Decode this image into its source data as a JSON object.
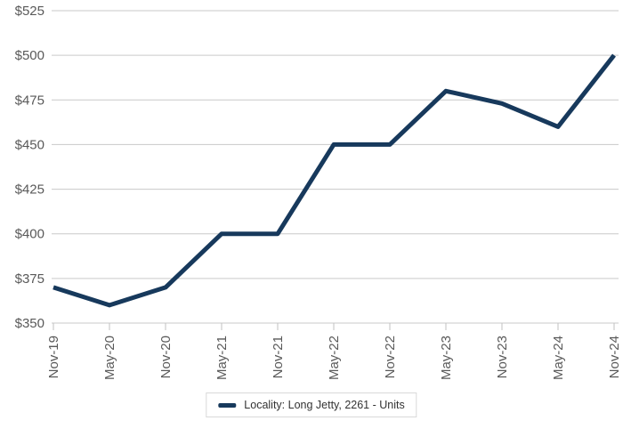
{
  "chart_data": {
    "type": "line",
    "title": "",
    "xlabel": "",
    "ylabel": "",
    "categories": [
      "Nov-19",
      "May-20",
      "Nov-20",
      "May-21",
      "Nov-21",
      "May-22",
      "Nov-22",
      "May-23",
      "Nov-23",
      "May-24",
      "Nov-24"
    ],
    "series": [
      {
        "name": "Locality: Long Jetty, 2261 - Units",
        "values": [
          370,
          360,
          370,
          400,
          400,
          450,
          450,
          480,
          473,
          460,
          500
        ]
      }
    ],
    "ylim": [
      350,
      525
    ],
    "ytick_step": 25,
    "yticklabels": [
      "$350",
      "$375",
      "$400",
      "$425",
      "$450",
      "$475",
      "$500",
      "$525"
    ],
    "grid": "horizontal",
    "legend_position": "bottom-center",
    "legend": {
      "label": "Locality: Long Jetty, 2261 - Units"
    },
    "colors": {
      "line": "#17395c",
      "grid": "#c9c9c9",
      "tick": "#c2c2c2",
      "axis_label": "#595959",
      "legend_text": "#333333",
      "legend_border": "#d9d9d9",
      "background": "#ffffff"
    }
  }
}
